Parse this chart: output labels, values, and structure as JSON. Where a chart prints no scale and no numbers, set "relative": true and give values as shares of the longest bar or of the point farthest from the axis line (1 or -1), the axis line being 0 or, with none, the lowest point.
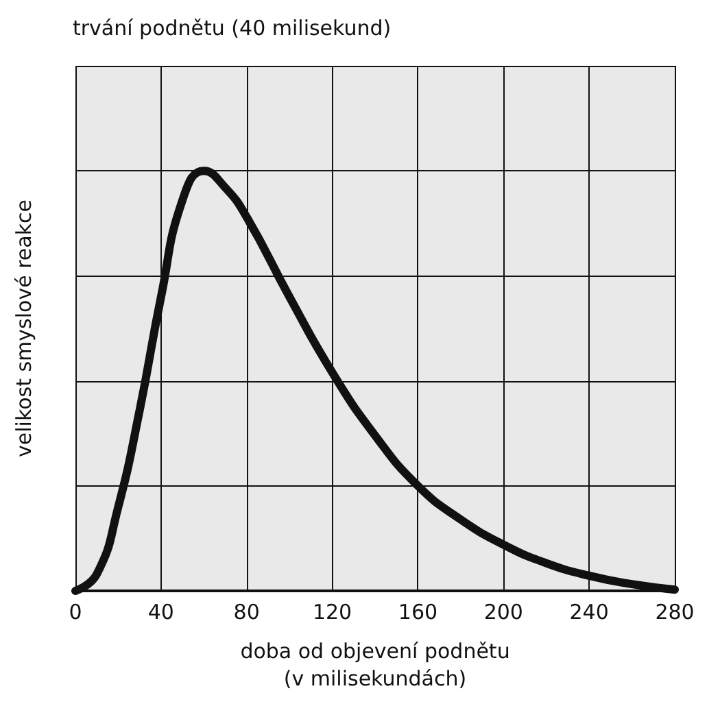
{
  "chart_data": {
    "type": "line",
    "title": "trvání podnětu (40 milisekund)",
    "xlabel": "doba od objevení podnětu\n(v milisekundách)",
    "ylabel": "velikost smyslové reakce",
    "relative": true,
    "xlim": [
      0,
      280
    ],
    "xticks": [
      0,
      40,
      80,
      120,
      160,
      200,
      240,
      280
    ],
    "grid": true,
    "marker": "none",
    "line_style": "solid",
    "x": [
      0,
      10,
      20,
      30,
      40,
      50,
      60,
      70,
      80,
      100,
      120,
      140,
      160,
      180,
      200,
      220,
      240,
      260,
      280
    ],
    "series": [
      {
        "color": "#111111",
        "values": [
          0,
          0.04,
          0.2,
          0.43,
          0.7,
          0.93,
          1,
          0.96,
          0.89,
          0.7,
          0.52,
          0.37,
          0.25,
          0.17,
          0.11,
          0.066,
          0.036,
          0.016,
          0.003
        ]
      }
    ]
  }
}
